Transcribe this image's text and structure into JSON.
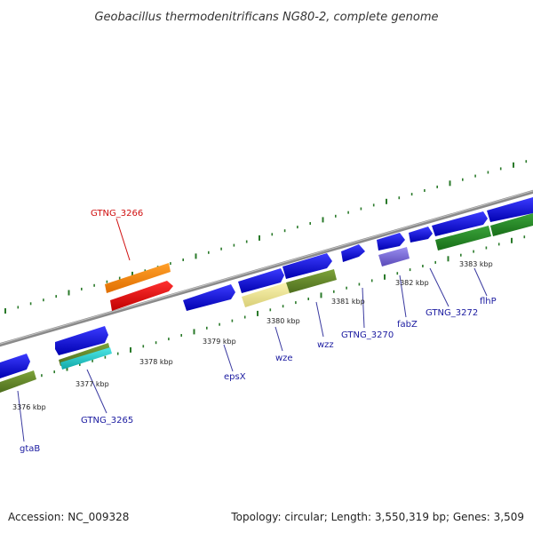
{
  "title": "Geobacillus thermodenitrificans NG80-2, complete genome",
  "footer": {
    "accession": "Accession: NC_009328",
    "summary": "Topology: circular; Length: 3,550,319 bp; Genes: 3,509"
  },
  "colors": {
    "backbone": "#8a8a8a",
    "tick": "#2a7a2a",
    "label_blue": "#1a1aa0",
    "label_red": "#d01010",
    "leader": "#3a3aa0",
    "leader_red": "#d01010"
  },
  "scale_labels": [
    "3376 kbp",
    "3377 kbp",
    "3378 kbp",
    "3379 kbp",
    "3380 kbp",
    "3381 kbp",
    "3382 kbp",
    "3383 kbp"
  ],
  "gene_labels": {
    "gtaB": "gtaB",
    "gtng3265": "GTNG_3265",
    "gtng3266": "GTNG_3266",
    "epsX": "epsX",
    "wze": "wze",
    "wzz": "wzz",
    "gtng3270": "GTNG_3270",
    "fabZ": "fabZ",
    "gtng3272": "GTNG_3272",
    "flhP": "flhP"
  }
}
